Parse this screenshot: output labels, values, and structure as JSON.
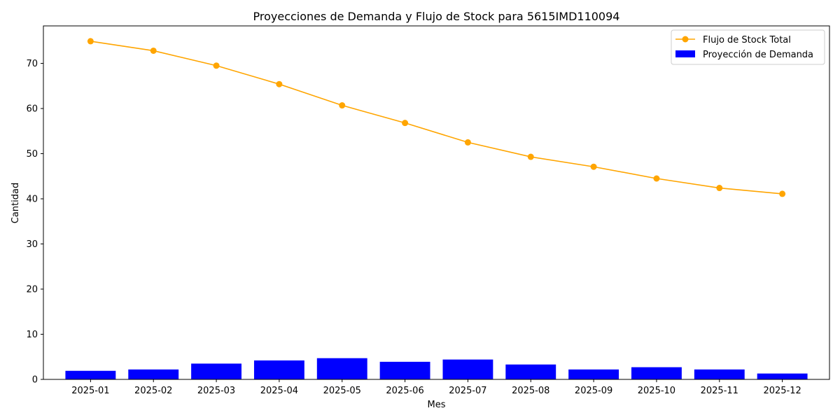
{
  "chart_data": {
    "type": "bar+line",
    "title": "Proyecciones de Demanda y Flujo de Stock para 5615IMD110094",
    "xlabel": "Mes",
    "ylabel": "Cantidad",
    "categories": [
      "2025-01",
      "2025-02",
      "2025-03",
      "2025-04",
      "2025-05",
      "2025-06",
      "2025-07",
      "2025-08",
      "2025-09",
      "2025-10",
      "2025-11",
      "2025-12"
    ],
    "ylim": [
      0,
      78.3
    ],
    "yticks": [
      0,
      10,
      20,
      30,
      40,
      50,
      60,
      70
    ],
    "series": [
      {
        "name": "Flujo de Stock Total",
        "type": "line",
        "color": "#ffa500",
        "marker": "circle",
        "values": [
          74.9,
          72.8,
          69.5,
          65.4,
          60.7,
          56.8,
          52.5,
          49.3,
          47.1,
          44.5,
          42.4,
          41.1
        ]
      },
      {
        "name": "Proyección de Demanda",
        "type": "bar",
        "color": "#0000ff",
        "values": [
          1.9,
          2.2,
          3.5,
          4.2,
          4.7,
          3.9,
          4.4,
          3.3,
          2.2,
          2.7,
          2.2,
          1.3
        ]
      }
    ],
    "legend": {
      "position": "top-right"
    },
    "grid": false
  }
}
